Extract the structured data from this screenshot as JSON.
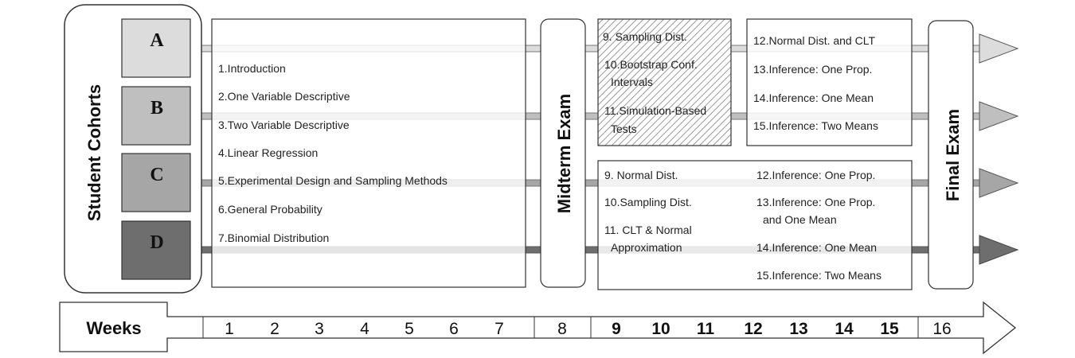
{
  "side_label": "Student Cohorts",
  "cohorts": [
    "A",
    "B",
    "C",
    "D"
  ],
  "topics_weeks_1_7": [
    "1.Introduction",
    "2.One Variable Descriptive",
    "3.Two Variable Descriptive",
    "4.Linear Regression",
    "5.Experimental Design and Sampling Methods",
    "6.General Probability",
    "7.Binomial Distribution"
  ],
  "midterm": "Midterm Exam",
  "final": "Final Exam",
  "ab_simulation": {
    "t9": "9.  Sampling Dist.",
    "t10a": "10.Bootstrap Conf.",
    "t10b": "Intervals",
    "t11a": "11.Simulation-Based",
    "t11b": "Tests"
  },
  "ab_later": [
    "12.Normal Dist. and CLT",
    "13.Inference: One Prop.",
    "14.Inference: One Mean",
    "15.Inference: Two Means"
  ],
  "cd_left": {
    "t9": "9.  Normal Dist.",
    "t10": "10.Sampling Dist.",
    "t11a": "11. CLT & Normal",
    "t11b": "Approximation"
  },
  "cd_right": {
    "t12": "12.Inference: One Prop.",
    "t13a": "13.Inference: One Prop.",
    "t13b": "and One Mean",
    "t14": "14.Inference: One Mean",
    "t15": "15.Inference: Two Means"
  },
  "timeline": {
    "label": "Weeks",
    "weeks": [
      "1",
      "2",
      "3",
      "4",
      "5",
      "6",
      "7",
      "8",
      "9",
      "10",
      "11",
      "12",
      "13",
      "14",
      "15",
      "16"
    ]
  },
  "colors": {
    "A": "#dcdcdc",
    "B": "#bfbfbf",
    "C": "#a6a6a6",
    "D": "#6e6e6e",
    "hatch": "#c8c8c8"
  }
}
